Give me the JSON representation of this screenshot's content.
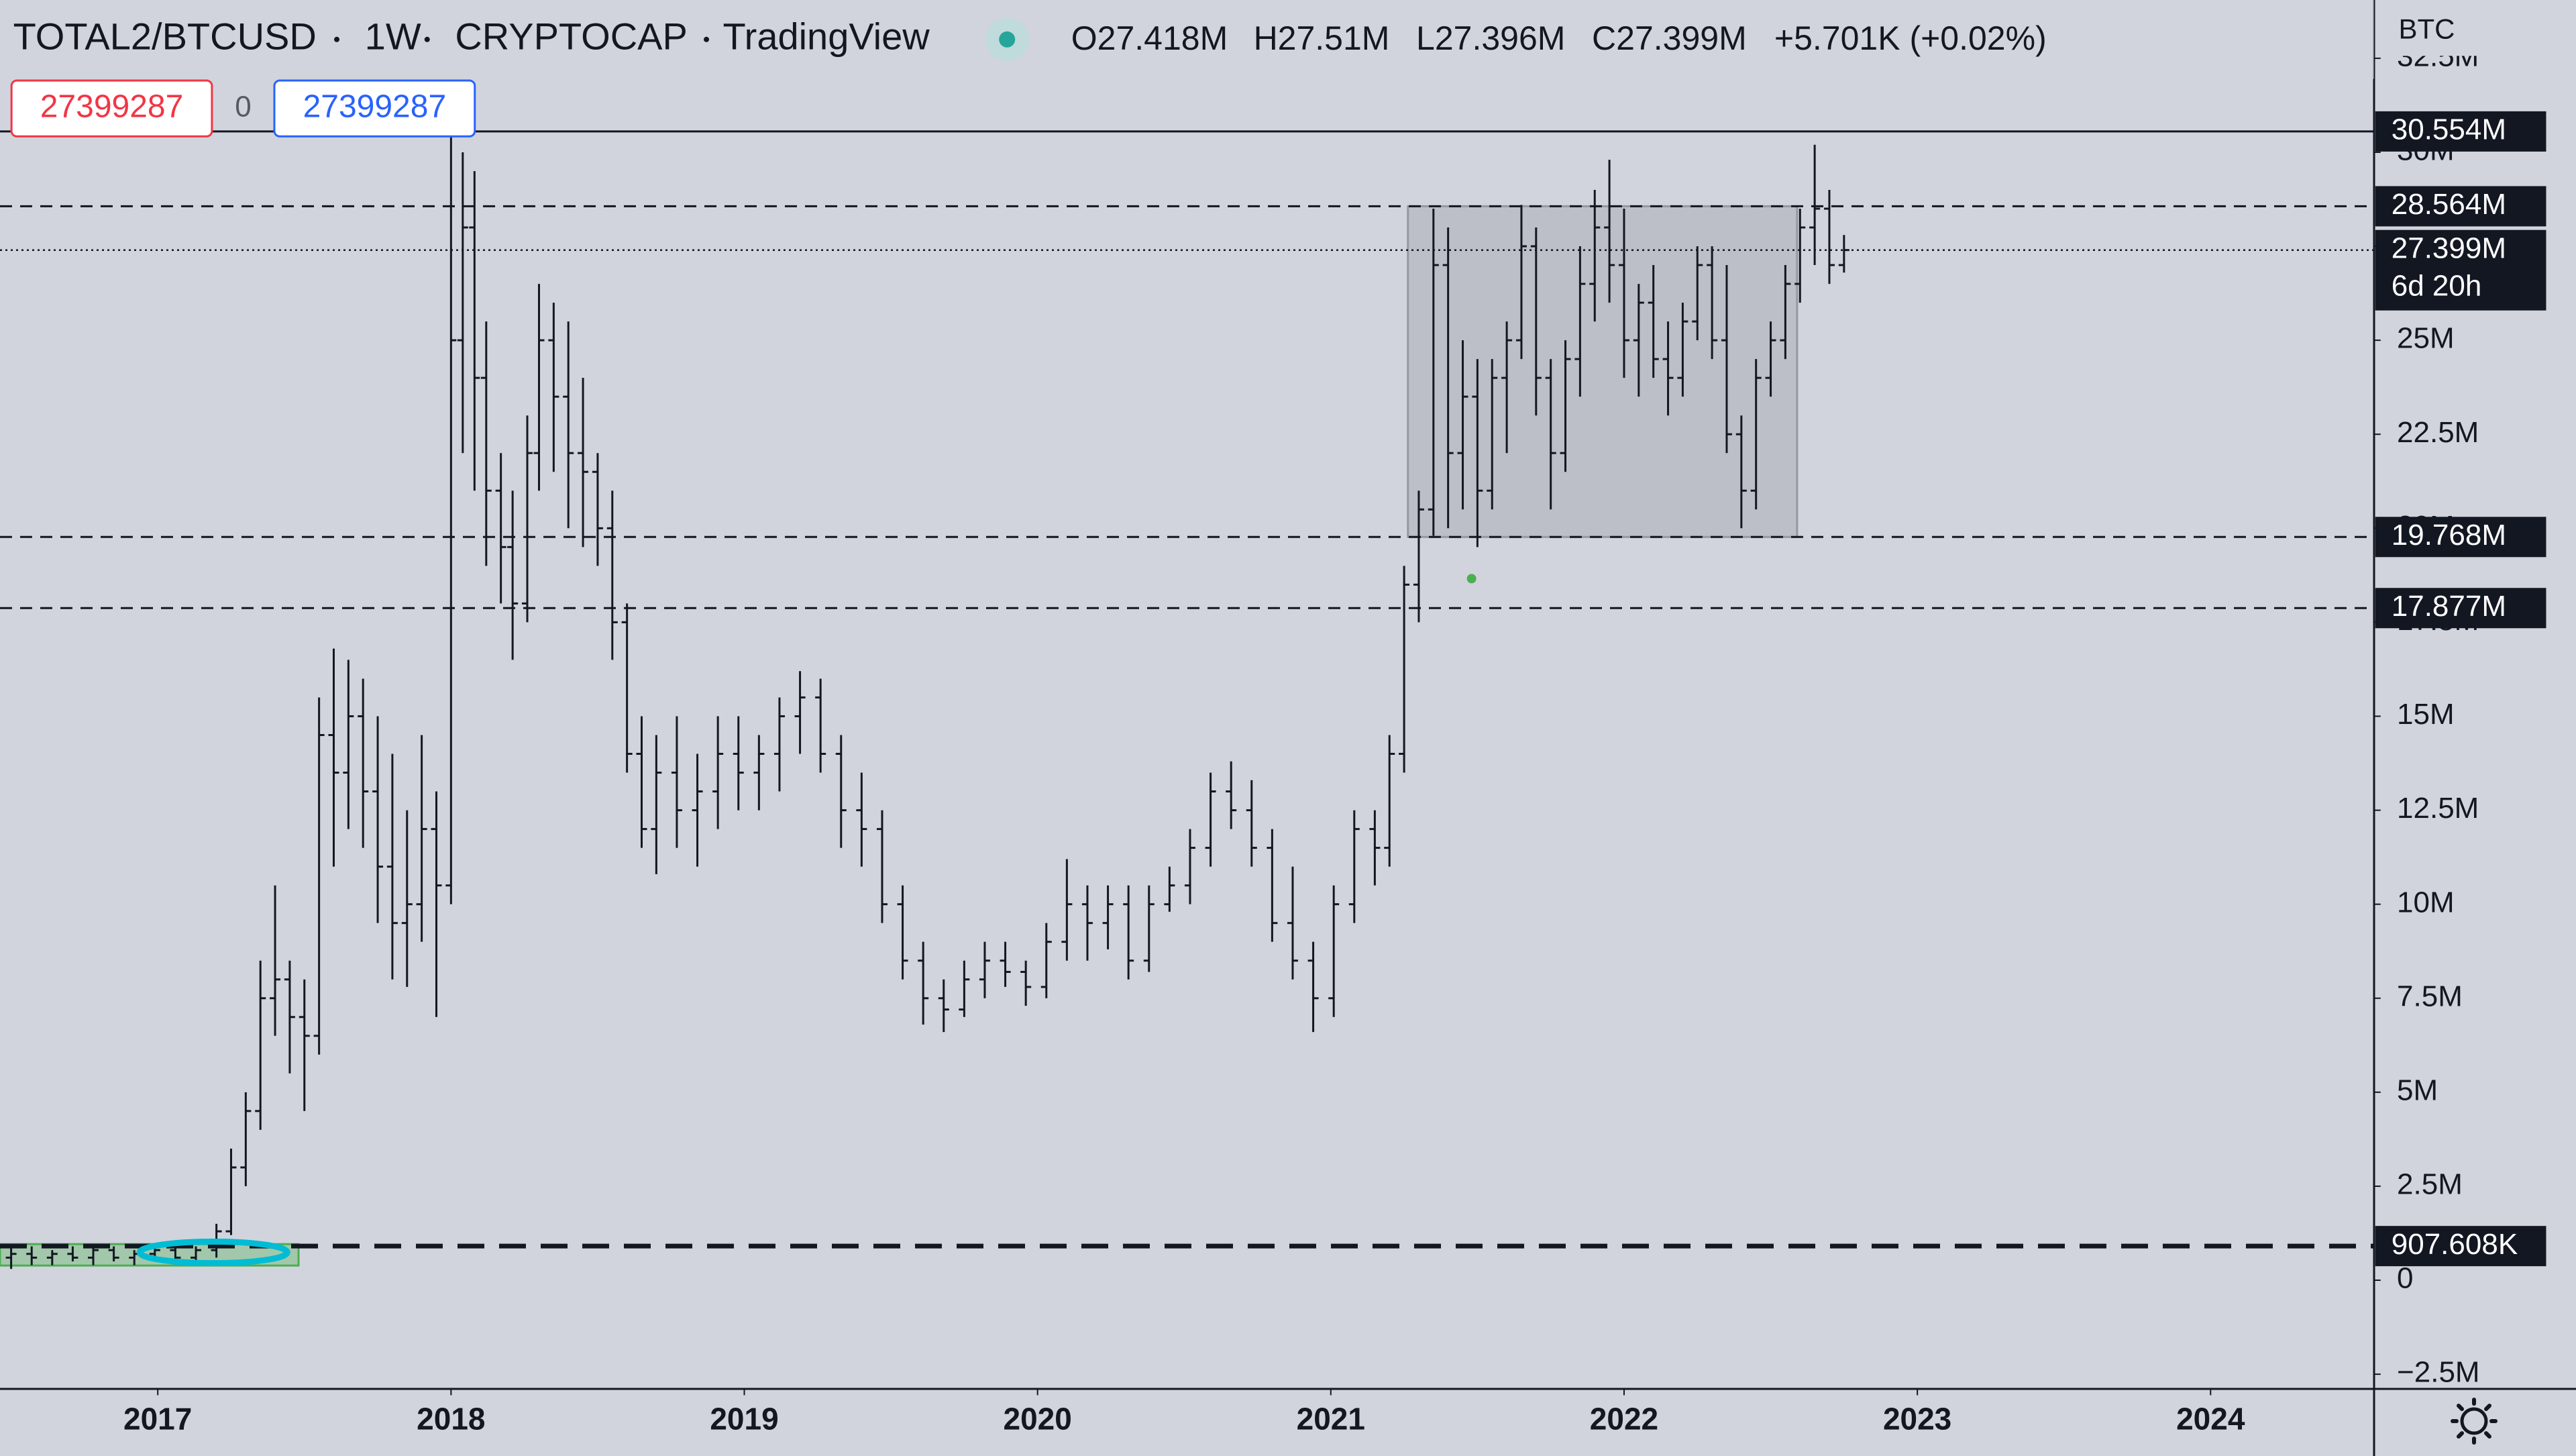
{
  "chart_data": {
    "type": "ohlc",
    "header": {
      "symbol": "TOTAL2/BTCUSD",
      "interval": "1W",
      "exchange": "CRYPTOCAP",
      "source": "TradingView",
      "ohlc": [
        {
          "key": "O",
          "label": "27.418M"
        },
        {
          "key": "H",
          "label": "27.51M"
        },
        {
          "key": "L",
          "label": "27.396M"
        },
        {
          "key": "C",
          "label": "27.399M"
        }
      ],
      "change": "+5.701K (+0.02%)"
    },
    "order_boxes": [
      "27399287",
      "0",
      "27399287"
    ],
    "currency": "BTC",
    "color": "#131722",
    "xlim": [
      2016.462,
      2024.557
    ],
    "xticks": [
      2017,
      2018,
      2019,
      2020,
      2021,
      2022,
      2023,
      2024
    ],
    "ylim": [
      -2880000.0,
      34050000.0
    ],
    "yticks": [
      {
        "value": -2500000.0,
        "label": "−2.5M"
      },
      0,
      {
        "value": 2500000.0,
        "label": "2.5M"
      },
      {
        "value": 5000000.0,
        "label": "5M"
      },
      {
        "value": 7500000.0,
        "label": "7.5M"
      },
      {
        "value": 10000000.0,
        "label": "10M"
      },
      {
        "value": 12500000.0,
        "label": "12.5M"
      },
      {
        "value": 15000000.0,
        "label": "15M"
      },
      {
        "value": 17500000.0,
        "label": "17.5M"
      },
      {
        "value": 20000000.0,
        "label": "20M"
      },
      {
        "value": 22500000.0,
        "label": "22.5M"
      },
      {
        "value": 25000000.0,
        "label": "25M"
      },
      {
        "value": 27500000.0,
        "label": "27.5M"
      },
      {
        "value": 30000000.0,
        "label": "30M"
      },
      {
        "value": 32500000.0,
        "label": "32.5M"
      }
    ],
    "x": [
      2016.5,
      2016.57,
      2016.64,
      2016.71,
      2016.78,
      2016.85,
      2016.92,
      2016.99,
      2017.06,
      2017.13,
      2017.2,
      2017.25,
      2017.3,
      2017.35,
      2017.4,
      2017.45,
      2017.5,
      2017.55,
      2017.6,
      2017.65,
      2017.7,
      2017.75,
      2017.8,
      2017.85,
      2017.9,
      2017.95,
      2018.0,
      2018.04,
      2018.08,
      2018.12,
      2018.17,
      2018.21,
      2018.26,
      2018.3,
      2018.35,
      2018.4,
      2018.45,
      2018.5,
      2018.55,
      2018.6,
      2018.65,
      2018.7,
      2018.77,
      2018.84,
      2018.91,
      2018.98,
      2019.05,
      2019.12,
      2019.19,
      2019.26,
      2019.33,
      2019.4,
      2019.47,
      2019.54,
      2019.61,
      2019.68,
      2019.75,
      2019.82,
      2019.89,
      2019.96,
      2020.03,
      2020.1,
      2020.17,
      2020.24,
      2020.31,
      2020.38,
      2020.45,
      2020.52,
      2020.59,
      2020.66,
      2020.73,
      2020.8,
      2020.87,
      2020.94,
      2021.01,
      2021.08,
      2021.15,
      2021.2,
      2021.25,
      2021.3,
      2021.35,
      2021.4,
      2021.45,
      2021.5,
      2021.55,
      2021.6,
      2021.65,
      2021.7,
      2021.75,
      2021.8,
      2021.85,
      2021.9,
      2021.95,
      2022.0,
      2022.05,
      2022.1,
      2022.15,
      2022.2,
      2022.25,
      2022.3,
      2022.35,
      2022.4,
      2022.45,
      2022.5,
      2022.55,
      2022.6,
      2022.65,
      2022.7,
      2022.75
    ],
    "open": [
      600000.0,
      700000.0,
      600000.0,
      700000.0,
      600000.0,
      800000.0,
      600000.0,
      700000.0,
      800000.0,
      600000.0,
      800000.0,
      1300000.0,
      3000000.0,
      4500000.0,
      7500000.0,
      8000000.0,
      7000000.0,
      6500000.0,
      14500000.0,
      13500000.0,
      15000000.0,
      13000000.0,
      11000000.0,
      9500000.0,
      10000000.0,
      12000000.0,
      10500000.0,
      25000000.0,
      28000000.0,
      24000000.0,
      21000000.0,
      19500000.0,
      18000000.0,
      22000000.0,
      25000000.0,
      23500000.0,
      22000000.0,
      21500000.0,
      20000000.0,
      17500000.0,
      14000000.0,
      12000000.0,
      13500000.0,
      12500000.0,
      13000000.0,
      14000000.0,
      13500000.0,
      14000000.0,
      15000000.0,
      15500000.0,
      14000000.0,
      12500000.0,
      12000000.0,
      10000000.0,
      8500000.0,
      7500000.0,
      7200000.0,
      8000000.0,
      8500000.0,
      8200000.0,
      7800000.0,
      9000000.0,
      10000000.0,
      9500000.0,
      10000000.0,
      8500000.0,
      10000000.0,
      10500000.0,
      11500000.0,
      13000000.0,
      12500000.0,
      11500000.0,
      9500000.0,
      8500000.0,
      7500000.0,
      10000000.0,
      12000000.0,
      11500000.0,
      14000000.0,
      18500000.0,
      20500000.0,
      27000000.0,
      22000000.0,
      23500000.0,
      21000000.0,
      24000000.0,
      25000000.0,
      27500000.0,
      24000000.0,
      22000000.0,
      24500000.0,
      26500000.0,
      28000000.0,
      27000000.0,
      25000000.0,
      26000000.0,
      24500000.0,
      24000000.0,
      25500000.0,
      27000000.0,
      25000000.0,
      22500000.0,
      21000000.0,
      24000000.0,
      25000000.0,
      26500000.0,
      28000000.0,
      28500000.0,
      27000000.0
    ],
    "high": [
      900000.0,
      900000.0,
      800000.0,
      900000.0,
      900000.0,
      900000.0,
      800000.0,
      900000.0,
      1000000.0,
      900000.0,
      1500000.0,
      3500000.0,
      5000000.0,
      8500000.0,
      10500000.0,
      8500000.0,
      8000000.0,
      15500000.0,
      16800000.0,
      16500000.0,
      16000000.0,
      15000000.0,
      14000000.0,
      12500000.0,
      14500000.0,
      13000000.0,
      30500000.0,
      30000000.0,
      29500000.0,
      25500000.0,
      22000000.0,
      21000000.0,
      23000000.0,
      26500000.0,
      26000000.0,
      25500000.0,
      24000000.0,
      22000000.0,
      21000000.0,
      18000000.0,
      15000000.0,
      14500000.0,
      15000000.0,
      14000000.0,
      15000000.0,
      15000000.0,
      14500000.0,
      15500000.0,
      16200000.0,
      16000000.0,
      14500000.0,
      13500000.0,
      12500000.0,
      10500000.0,
      9000000.0,
      8000000.0,
      8500000.0,
      9000000.0,
      9000000.0,
      8500000.0,
      9500000.0,
      11200000.0,
      10500000.0,
      10500000.0,
      10500000.0,
      10500000.0,
      11000000.0,
      12000000.0,
      13500000.0,
      13800000.0,
      13300000.0,
      12000000.0,
      11000000.0,
      9000000.0,
      10500000.0,
      12500000.0,
      12500000.0,
      14500000.0,
      19000000.0,
      21000000.0,
      28500000.0,
      28000000.0,
      25000000.0,
      24500000.0,
      24500000.0,
      25500000.0,
      28600000.0,
      28000000.0,
      24500000.0,
      25000000.0,
      27500000.0,
      29000000.0,
      29800000.0,
      28500000.0,
      26500000.0,
      27000000.0,
      25500000.0,
      26000000.0,
      27500000.0,
      27500000.0,
      27000000.0,
      23000000.0,
      24500000.0,
      25500000.0,
      27000000.0,
      28500000.0,
      30200000.0,
      29000000.0,
      27800000.0
    ],
    "low": [
      300000.0,
      400000.0,
      400000.0,
      500000.0,
      400000.0,
      500000.0,
      400000.0,
      500000.0,
      500000.0,
      400000.0,
      600000.0,
      1200000.0,
      2500000.0,
      4000000.0,
      6500000.0,
      5500000.0,
      4500000.0,
      6000000.0,
      11000000.0,
      12000000.0,
      11500000.0,
      9500000.0,
      8000000.0,
      7800000.0,
      9000000.0,
      7000000.0,
      10000000.0,
      22000000.0,
      21000000.0,
      19000000.0,
      18000000.0,
      16500000.0,
      17500000.0,
      21000000.0,
      21500000.0,
      20000000.0,
      19500000.0,
      19000000.0,
      16500000.0,
      13500000.0,
      11500000.0,
      10800000.0,
      11500000.0,
      11000000.0,
      12000000.0,
      12500000.0,
      12500000.0,
      13000000.0,
      14000000.0,
      13500000.0,
      11500000.0,
      11000000.0,
      9500000.0,
      8000000.0,
      6800000.0,
      6600000.0,
      7000000.0,
      7500000.0,
      7800000.0,
      7300000.0,
      7500000.0,
      8500000.0,
      8500000.0,
      8800000.0,
      8000000.0,
      8200000.0,
      9800000.0,
      10000000.0,
      11000000.0,
      12000000.0,
      11000000.0,
      9000000.0,
      8000000.0,
      6600000.0,
      7000000.0,
      9500000.0,
      10500000.0,
      11000000.0,
      13500000.0,
      17500000.0,
      19800000.0,
      20000000.0,
      20500000.0,
      19500000.0,
      20500000.0,
      22000000.0,
      24500000.0,
      23000000.0,
      20500000.0,
      21500000.0,
      23500000.0,
      25500000.0,
      26000000.0,
      24000000.0,
      23500000.0,
      24000000.0,
      23000000.0,
      23500000.0,
      25000000.0,
      24500000.0,
      22000000.0,
      20000000.0,
      20500000.0,
      23500000.0,
      24500000.0,
      26000000.0,
      27000000.0,
      26500000.0,
      26800000.0
    ],
    "close": [
      700000.0,
      600000.0,
      700000.0,
      600000.0,
      800000.0,
      600000.0,
      700000.0,
      800000.0,
      600000.0,
      800000.0,
      1300000.0,
      3000000.0,
      4500000.0,
      7500000.0,
      8000000.0,
      7000000.0,
      6500000.0,
      14500000.0,
      13500000.0,
      15000000.0,
      13000000.0,
      11000000.0,
      9500000.0,
      10000000.0,
      12000000.0,
      10500000.0,
      25000000.0,
      28000000.0,
      24000000.0,
      21000000.0,
      19500000.0,
      18000000.0,
      22000000.0,
      25000000.0,
      23500000.0,
      22000000.0,
      21500000.0,
      20000000.0,
      17500000.0,
      14000000.0,
      12000000.0,
      13500000.0,
      12500000.0,
      13000000.0,
      14000000.0,
      13500000.0,
      14000000.0,
      15000000.0,
      15500000.0,
      14000000.0,
      12500000.0,
      12000000.0,
      10000000.0,
      8500000.0,
      7500000.0,
      7200000.0,
      8000000.0,
      8500000.0,
      8200000.0,
      7800000.0,
      9000000.0,
      10000000.0,
      9500000.0,
      10000000.0,
      8500000.0,
      10000000.0,
      10500000.0,
      11500000.0,
      13000000.0,
      12500000.0,
      11500000.0,
      9500000.0,
      8500000.0,
      7500000.0,
      10000000.0,
      12000000.0,
      11500000.0,
      14000000.0,
      18500000.0,
      20500000.0,
      27000000.0,
      22000000.0,
      23500000.0,
      21000000.0,
      24000000.0,
      25000000.0,
      27500000.0,
      24000000.0,
      22000000.0,
      24500000.0,
      26500000.0,
      28000000.0,
      27000000.0,
      25000000.0,
      26000000.0,
      24500000.0,
      24000000.0,
      25500000.0,
      27000000.0,
      25000000.0,
      22500000.0,
      21000000.0,
      24000000.0,
      25000000.0,
      26500000.0,
      28000000.0,
      28500000.0,
      27000000.0,
      27399000.0
    ],
    "horizontal_lines": [
      {
        "value": 30554000.0,
        "label": "30.554M",
        "style": "solid"
      },
      {
        "value": 28564000.0,
        "label": "28.564M",
        "style": "dashed"
      },
      {
        "value": 27399000.0,
        "label": "27.399M",
        "style": "dotted",
        "countdown": "6d 20h"
      },
      {
        "value": 19768000.0,
        "label": "19.768M",
        "style": "dashed"
      },
      {
        "value": 17877000.0,
        "label": "17.877M",
        "style": "dashed"
      },
      {
        "value": 907608,
        "label": "907.608K",
        "style": "thick-dashed"
      }
    ],
    "range_box": {
      "x0": 2021.263,
      "x1": 2022.59,
      "y0": 19768000.0,
      "y1": 28564000.0,
      "color": "#9598a1"
    },
    "base_box": {
      "x0": 2016.462,
      "x1": 2017.48,
      "y0": 390000.0,
      "y1": 960000.0,
      "color": "#4caf50"
    },
    "ellipse": {
      "x": 2017.19,
      "y": 740000.0,
      "color": "#00bcd4"
    },
    "marker": {
      "x": 2021.48,
      "y": 18660000.0,
      "color": "#4caf50"
    }
  }
}
